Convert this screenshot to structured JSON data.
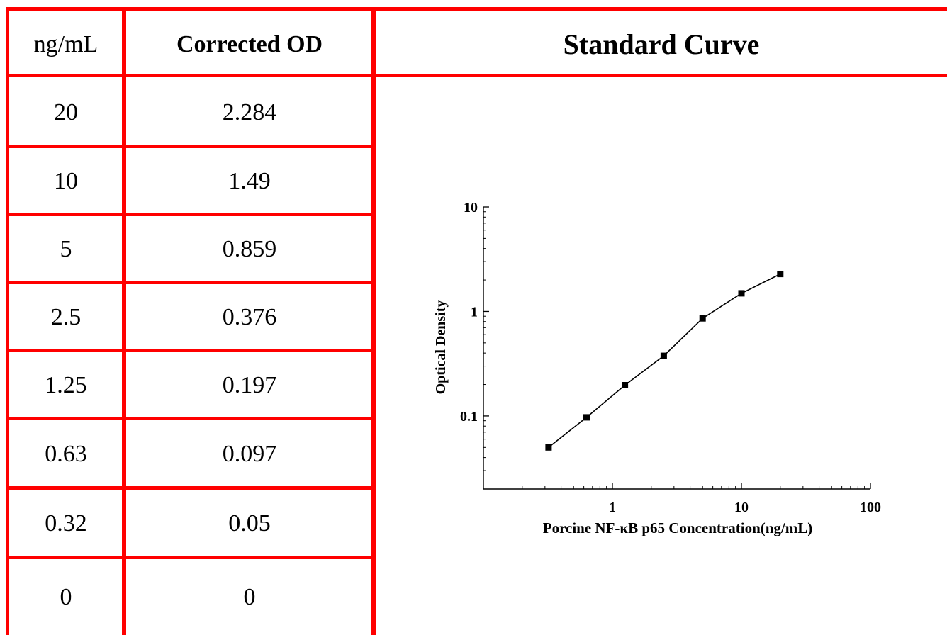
{
  "table": {
    "headers": {
      "conc": "ng/mL",
      "od": "Corrected OD"
    },
    "rows": [
      {
        "conc": "20",
        "od": "2.284"
      },
      {
        "conc": "10",
        "od": "1.49"
      },
      {
        "conc": "5",
        "od": "0.859"
      },
      {
        "conc": "2.5",
        "od": "0.376"
      },
      {
        "conc": "1.25",
        "od": "0.197"
      },
      {
        "conc": "0.63",
        "od": "0.097"
      },
      {
        "conc": "0.32",
        "od": "0.05"
      },
      {
        "conc": "0",
        "od": "0"
      }
    ]
  },
  "chart_title": "Standard Curve",
  "chart_data": {
    "type": "line",
    "xlabel": "Porcine NF-κB p65 Concentration(ng/mL)",
    "ylabel": "Optical Density",
    "x_scale": "log",
    "y_scale": "log",
    "xlim": [
      0.1,
      100
    ],
    "ylim": [
      0.02,
      10
    ],
    "x_ticks": [
      1,
      10,
      100
    ],
    "x_tick_labels": [
      "1",
      "10",
      "100"
    ],
    "y_ticks": [
      0.1,
      1,
      10
    ],
    "y_tick_labels": [
      "0.1",
      "1",
      "10"
    ],
    "grid": false,
    "marker": "square",
    "color": "#000000",
    "x": [
      0.32,
      0.63,
      1.25,
      2.5,
      5,
      10,
      20
    ],
    "y": [
      0.05,
      0.097,
      0.197,
      0.376,
      0.859,
      1.49,
      2.284
    ]
  }
}
